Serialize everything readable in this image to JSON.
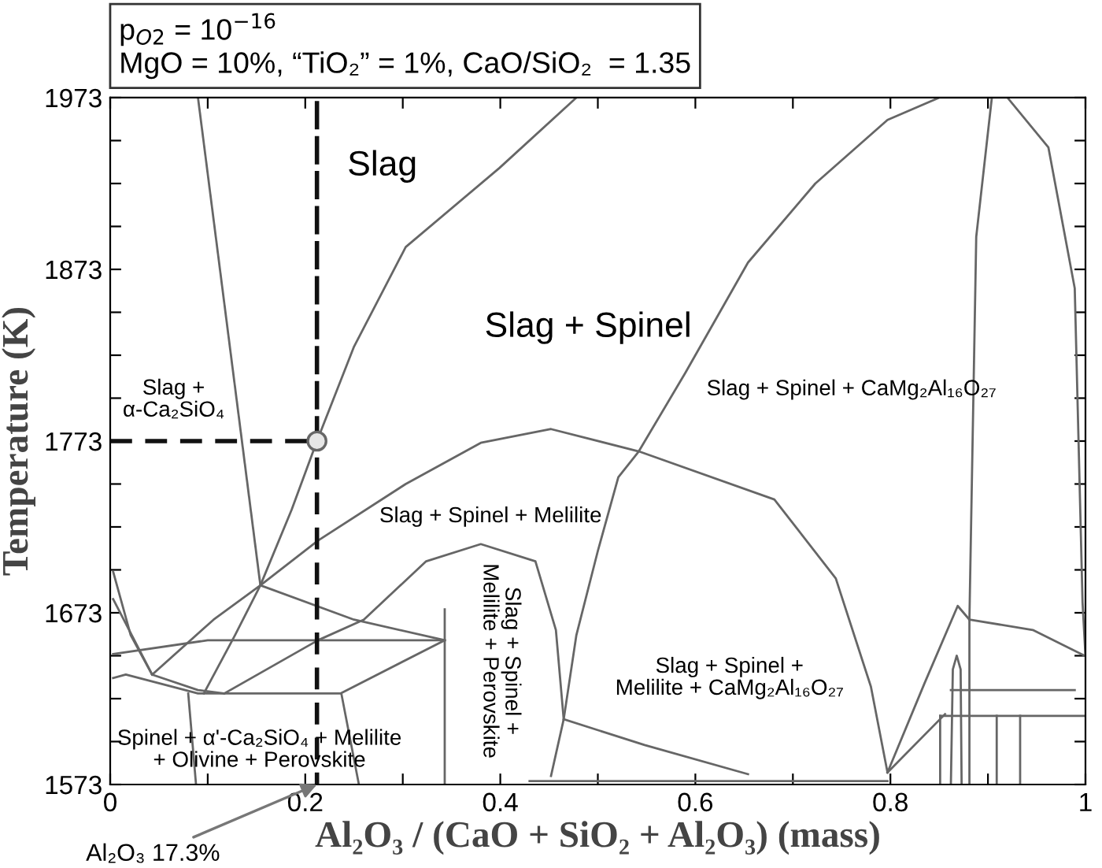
{
  "chart_data": {
    "type": "line",
    "title": "p$_{O2}$ = 10$^{−16}$",
    "subtitle": "MgO = 10%, “TiO₂” = 1%, CaO/SiO₂  = 1.35",
    "xlabel": "Al₂O₃ / (CaO + SiO₂ + Al₂O₃) (mass)",
    "ylabel": "Temperature (K)",
    "xlim": [
      0,
      1
    ],
    "ylim": [
      1573,
      1973
    ],
    "xticks": [
      0,
      {
        "value": 0.1,
        "label": null
      },
      0.2,
      {
        "value": 0.3,
        "label": null
      },
      0.4,
      {
        "value": 0.5,
        "label": null
      },
      0.6,
      {
        "value": 0.7,
        "label": null
      },
      0.8,
      {
        "value": 0.9,
        "label": null
      },
      1
    ],
    "yticks": [
      1573,
      {
        "value": 1598,
        "label": null
      },
      {
        "value": 1623,
        "label": null
      },
      {
        "value": 1648,
        "label": null
      },
      1673,
      {
        "value": 1698,
        "label": null
      },
      {
        "value": 1723,
        "label": null
      },
      {
        "value": 1748,
        "label": null
      },
      1773,
      {
        "value": 1798,
        "label": null
      },
      {
        "value": 1823,
        "label": null
      },
      {
        "value": 1848,
        "label": null
      },
      1873,
      {
        "value": 1898,
        "label": null
      },
      {
        "value": 1923,
        "label": null
      },
      {
        "value": 1948,
        "label": null
      },
      1973
    ],
    "series": [
      {
        "type": "line",
        "color": "#666666",
        "x": [
          0.09,
          0.154
        ],
        "values": [
          1973,
          1689
        ]
      },
      {
        "color": "#666666",
        "x": [
          0.096,
          0.128,
          0.154,
          0.186,
          0.212,
          0.25,
          0.303,
          0.399,
          0.478
        ],
        "values": [
          1626,
          1660,
          1689,
          1733,
          1773,
          1828,
          1886,
          1932,
          1973
        ]
      },
      {
        "type": "line",
        "color": "#666666",
        "x": [
          0.043,
          0.106,
          0.154,
          0.213,
          0.303,
          0.38,
          0.452,
          0.542,
          0.681,
          0.744,
          0.78,
          0.797
        ],
        "values": [
          1637,
          1669,
          1689,
          1715,
          1748,
          1772,
          1780,
          1767,
          1739,
          1693,
          1630,
          1580
        ]
      },
      {
        "type": "line",
        "color": "#666666",
        "x": [
          0.452,
          0.465,
          0.478,
          0.5,
          0.521,
          0.542,
          0.59,
          0.654,
          0.723,
          0.797,
          0.85,
          0.92,
          0.962,
          0.989,
          0.997,
          1.0
        ],
        "values": [
          1578,
          1611,
          1660,
          1709,
          1752,
          1767,
          1813,
          1877,
          1923,
          1960,
          1973,
          1973,
          1944,
          1862,
          1679,
          1648
        ]
      },
      {
        "type": "line",
        "color": "#666666",
        "x": [
          0.904,
          0.888,
          0.881,
          0.881
        ],
        "values": [
          1973,
          1892,
          1669,
          1573
        ]
      },
      {
        "type": "line",
        "color": "#666666",
        "x": [
          0.881,
          0.946,
          0.999
        ],
        "values": [
          1669,
          1663,
          1648
        ]
      },
      {
        "type": "line",
        "color": "#666666",
        "x": [
          0.117,
          0.213,
          0.26,
          0.324,
          0.38,
          0.436,
          0.457,
          0.465
        ],
        "values": [
          1626,
          1657,
          1669,
          1703,
          1713,
          1703,
          1663,
          1611
        ]
      },
      {
        "type": "line",
        "color": "#666666",
        "x": [
          0.154,
          0.25,
          0.343
        ],
        "values": [
          1689,
          1669,
          1657
        ]
      },
      {
        "type": "line",
        "color": "#666666",
        "x": [
          0.343,
          0.343
        ],
        "values": [
          1675,
          1573
        ]
      },
      {
        "type": "line",
        "color": "#666666",
        "x": [
          0.003,
          0.1,
          0.343
        ],
        "values": [
          1649,
          1657,
          1657
        ]
      },
      {
        "type": "line",
        "color": "#666666",
        "x": [
          0.003,
          0.021,
          0.043,
          0.09,
          0.117
        ],
        "values": [
          1697,
          1660,
          1637,
          1628,
          1626
        ]
      },
      {
        "type": "line",
        "color": "#666666",
        "x": [
          0.003,
          0.043
        ],
        "values": [
          1681,
          1637
        ]
      },
      {
        "type": "line",
        "color": "#666666",
        "x": [
          0.003,
          0.016,
          0.09,
          0.236,
          0.343
        ],
        "values": [
          1635,
          1637,
          1626,
          1626,
          1657
        ]
      },
      {
        "type": "line",
        "color": "#666666",
        "x": [
          0.08,
          0.088
        ],
        "values": [
          1626,
          1573
        ]
      },
      {
        "type": "line",
        "color": "#666666",
        "x": [
          0.237,
          0.255
        ],
        "values": [
          1626,
          1573
        ]
      },
      {
        "type": "line",
        "color": "#666666",
        "x": [
          0.465,
          0.548,
          0.654
        ],
        "values": [
          1611,
          1596,
          1579
        ]
      },
      {
        "type": "line",
        "color": "#666666",
        "x": [
          0.43,
          0.797
        ],
        "values": [
          1575,
          1575
        ]
      },
      {
        "type": "line",
        "color": "#666666",
        "x": [
          0.797,
          0.835,
          0.869,
          0.881
        ],
        "values": [
          1580,
          1632,
          1677,
          1669
        ]
      },
      {
        "type": "line",
        "color": "#666666",
        "x": [
          0.862,
          0.864,
          0.868,
          0.872,
          0.873
        ],
        "values": [
          1573,
          1640,
          1648,
          1640,
          1573
        ]
      },
      {
        "type": "line",
        "color": "#666666",
        "x": [
          0.862,
          0.989
        ],
        "values": [
          1628,
          1628
        ]
      },
      {
        "type": "line",
        "color": "#666666",
        "x": [
          0.851,
          0.999
        ],
        "values": [
          1613,
          1613
        ]
      },
      {
        "type": "line",
        "color": "#666666",
        "x": [
          0.909,
          0.909
        ],
        "values": [
          1613,
          1573
        ]
      },
      {
        "type": "line",
        "color": "#666666",
        "x": [
          0.933,
          0.933
        ],
        "values": [
          1613,
          1573
        ]
      },
      {
        "type": "line",
        "color": "#666666",
        "x": [
          0.797,
          0.856
        ],
        "values": [
          1580,
          1614
        ]
      },
      {
        "type": "line",
        "color": "#666666",
        "x": [
          0.851,
          0.851
        ],
        "values": [
          1613,
          1573
        ]
      },
      {
        "type": "line",
        "color": "#111111",
        "line_style": "dashed",
        "x": [
          0,
          0.212,
          0.212,
          0.212
        ],
        "values": [
          1773,
          1773,
          1973,
          1573
        ]
      },
      {
        "type": "scatter",
        "color": "#e6e6e6",
        "marker": "circle",
        "x": [
          0.212
        ],
        "values": [
          1773
        ]
      }
    ],
    "annotations": [
      "Slag",
      "Slag + Spinel",
      "Slag +\nα-Ca₂SiO₄",
      "Slag + Spinel + Melilite",
      "Slag + Spinel + CaMg₂Al₁₆O₂₇",
      "Slag + Spinel +\nMelilite + CaMg₂Al₁₆O₂₇",
      "Spinel + α'-Ca₂SiO₄ + Melilite\n+ Olivine + Perovskite",
      "Slag + Spinel +\nMelilite + Perovskite",
      {
        "text": "Al₂O₃ 17.3%",
        "x": 0.212,
        "y": 1573
      }
    ]
  }
}
